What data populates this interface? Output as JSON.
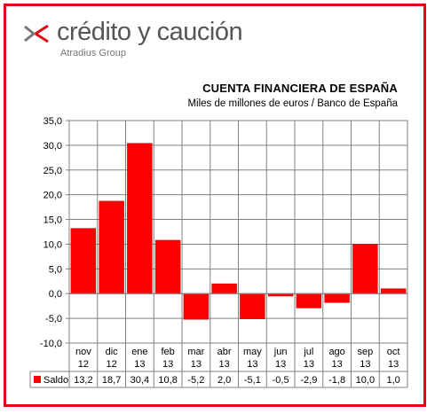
{
  "brand": {
    "name": "crédito y caución",
    "subtitle": "Atradius Group",
    "color": "#e30613"
  },
  "chart_data": {
    "type": "bar",
    "title": "CUENTA FINANCIERA DE ESPAÑA",
    "subtitle": "Miles de millones de euros / Banco de España",
    "categories": [
      [
        "nov",
        "12"
      ],
      [
        "dic",
        "12"
      ],
      [
        "ene",
        "13"
      ],
      [
        "feb",
        "13"
      ],
      [
        "mar",
        "13"
      ],
      [
        "abr",
        "13"
      ],
      [
        "may",
        "13"
      ],
      [
        "jun",
        "13"
      ],
      [
        "jul",
        "13"
      ],
      [
        "ago",
        "13"
      ],
      [
        "sep",
        "13"
      ],
      [
        "oct",
        "13"
      ]
    ],
    "series": [
      {
        "name": "Saldo",
        "color": "#ff0000",
        "values": [
          13.2,
          18.7,
          30.4,
          10.8,
          -5.2,
          2.0,
          -5.1,
          -0.5,
          -2.9,
          -1.8,
          10.0,
          1.0
        ],
        "labels": [
          "13,2",
          "18,7",
          "30,4",
          "10,8",
          "-5,2",
          "2,0",
          "-5,1",
          "-0,5",
          "-2,9",
          "-1,8",
          "10,0",
          "1,0"
        ]
      }
    ],
    "ylim": [
      -10,
      35
    ],
    "yticks": [
      35,
      30,
      25,
      20,
      15,
      10,
      5,
      0,
      -5,
      -10
    ],
    "ytick_labels": [
      "35,0",
      "30,0",
      "25,0",
      "20,0",
      "15,0",
      "10,0",
      "5,0",
      "0,0",
      "-5,0",
      "-10,0"
    ],
    "grid": true,
    "legend": "data-table"
  }
}
